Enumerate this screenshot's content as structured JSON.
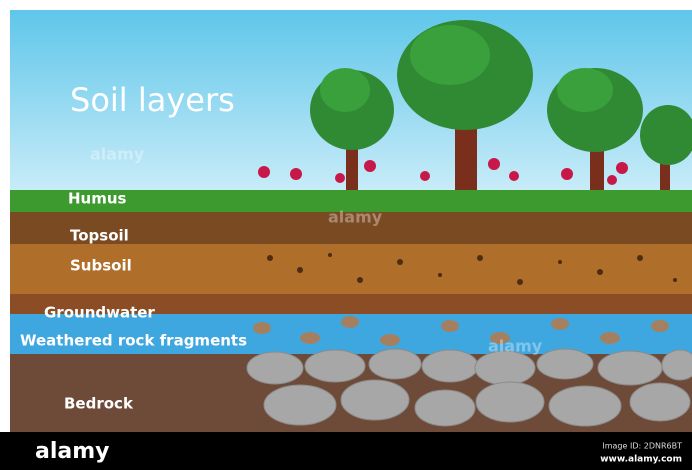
{
  "title": "Soil layers",
  "layers": [
    "Humus",
    "Topsoil",
    "Subsoil",
    "Groundwater",
    "Weathered rock fragments",
    "Bedrock"
  ],
  "watermark": "alamy",
  "footer": {
    "brand": "alamy",
    "image_id": "Image ID: 2DNR6BT",
    "url": "www.alamy.com"
  }
}
